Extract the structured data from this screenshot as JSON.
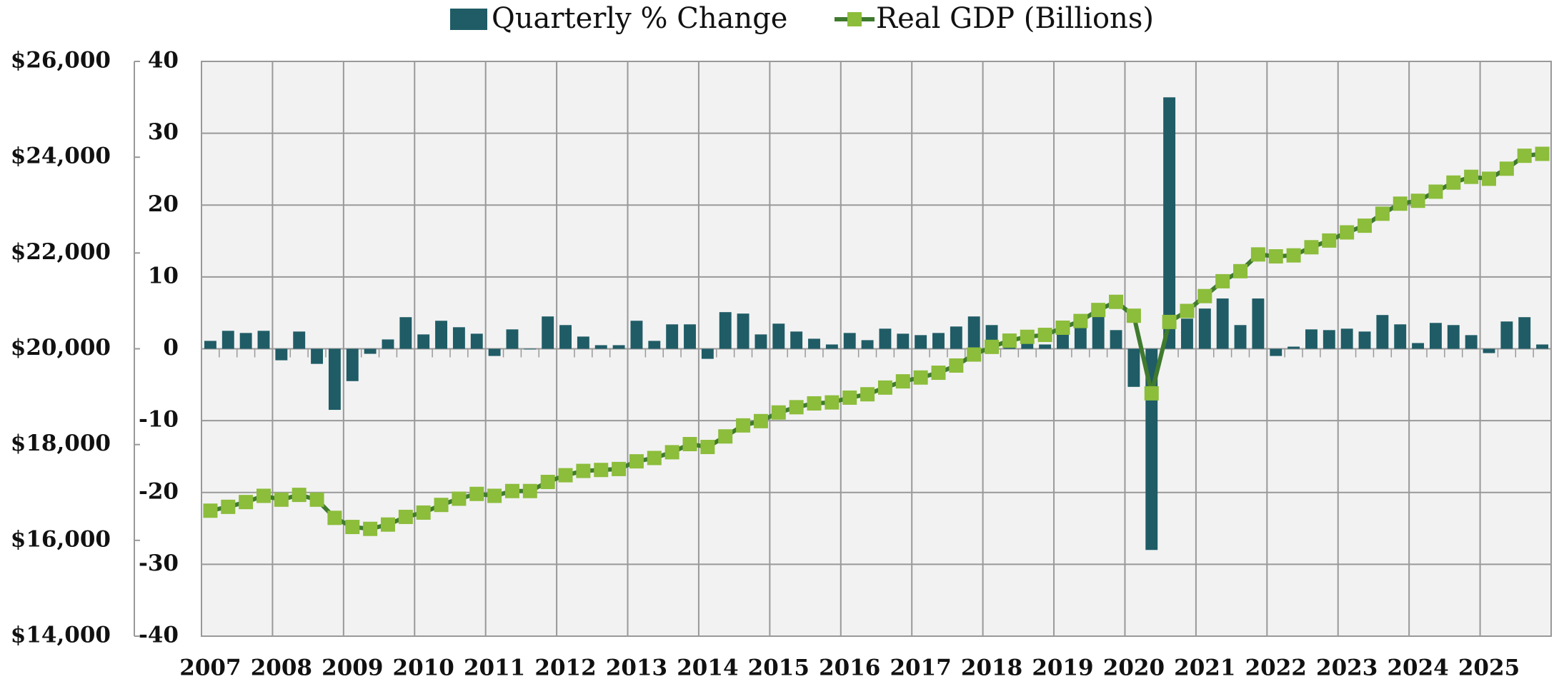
{
  "chart_data": {
    "type": "bar_line",
    "categories": [
      "2007",
      null,
      null,
      null,
      "2008",
      null,
      null,
      null,
      "2009",
      null,
      null,
      null,
      "2010",
      null,
      null,
      null,
      "2011",
      null,
      null,
      null,
      "2012",
      null,
      null,
      null,
      "2013",
      null,
      null,
      null,
      "2014",
      null,
      null,
      null,
      "2015",
      null,
      null,
      null,
      "2016",
      null,
      null,
      null,
      "2017",
      null,
      null,
      null,
      "2018",
      null,
      null,
      null,
      "2019",
      null,
      null,
      null,
      "2020",
      null,
      null,
      null,
      "2021",
      null,
      null,
      null,
      "2022",
      null,
      null,
      null,
      "2023",
      null,
      null,
      null,
      "2024",
      null,
      null,
      null,
      "2025",
      null,
      null,
      null
    ],
    "series": [
      {
        "name": "Quarterly % Change",
        "type": "bar",
        "color": "#1f5c66",
        "values": [
          1.1,
          2.5,
          2.2,
          2.5,
          -1.6,
          2.4,
          -2.1,
          -8.5,
          -4.5,
          -0.7,
          1.3,
          4.4,
          2.0,
          3.9,
          3.0,
          2.1,
          -1.0,
          2.7,
          -0.1,
          4.5,
          3.3,
          1.7,
          0.5,
          0.5,
          3.9,
          1.1,
          3.4,
          3.4,
          -1.4,
          5.1,
          4.9,
          2.0,
          3.5,
          2.4,
          1.4,
          0.6,
          2.2,
          1.2,
          2.8,
          2.1,
          1.9,
          2.2,
          3.1,
          4.5,
          3.3,
          2.1,
          1.0,
          0.6,
          2.2,
          3.4,
          4.6,
          2.6,
          -5.3,
          -28.0,
          35.0,
          4.2,
          5.6,
          7.0,
          3.3,
          7.0,
          -1.0,
          0.3,
          2.7,
          2.6,
          2.8,
          2.4,
          4.7,
          3.4,
          0.8,
          3.6,
          3.3,
          1.9,
          -0.6,
          3.8,
          4.4,
          0.6
        ]
      },
      {
        "name": "Real GDP (Billions)",
        "type": "line",
        "axis": "y2",
        "color": "#3f7a2e",
        "marker_color": "#8cbd3b",
        "values": [
          16620,
          16700,
          16800,
          16930,
          16850,
          16950,
          16850,
          16470,
          16280,
          16240,
          16330,
          16490,
          16580,
          16740,
          16870,
          16970,
          16930,
          17030,
          17030,
          17220,
          17360,
          17450,
          17470,
          17490,
          17650,
          17720,
          17840,
          18010,
          17950,
          18170,
          18400,
          18490,
          18670,
          18780,
          18860,
          18880,
          18980,
          19050,
          19190,
          19320,
          19400,
          19500,
          19650,
          19880,
          20040,
          20170,
          20250,
          20290,
          20440,
          20580,
          20810,
          20980,
          20690,
          19070,
          20560,
          20790,
          21100,
          21410,
          21620,
          21970,
          21930,
          21950,
          22120,
          22260,
          22430,
          22570,
          22820,
          23030,
          23090,
          23280,
          23470,
          23590,
          23550,
          23760,
          24030,
          24070
        ]
      }
    ],
    "ylim": [
      -40,
      40
    ],
    "yticks": [
      -40,
      -30,
      -20,
      -10,
      0,
      10,
      20,
      30,
      40
    ],
    "y2lim": [
      14000,
      26000
    ],
    "y2ticks": [
      {
        "value": 14000,
        "label": "$14,000"
      },
      {
        "value": 16000,
        "label": "$16,000"
      },
      {
        "value": 18000,
        "label": "$18,000"
      },
      {
        "value": 20000,
        "label": "$20,000"
      },
      {
        "value": 22000,
        "label": "$22,000"
      },
      {
        "value": 24000,
        "label": "$24,000"
      },
      {
        "value": 26000,
        "label": "$26,000"
      }
    ],
    "grid": true,
    "legend": "top"
  }
}
